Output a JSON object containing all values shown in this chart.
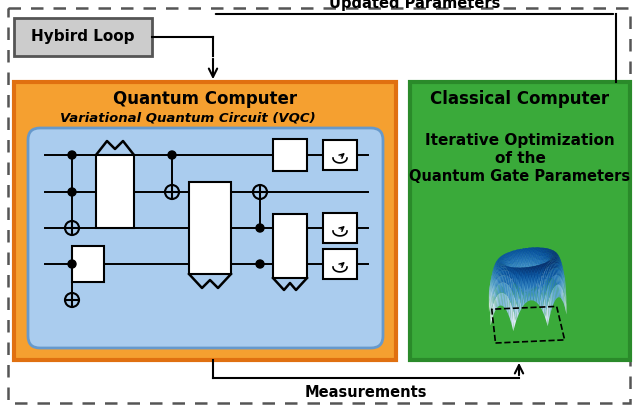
{
  "background_color": "#ffffff",
  "outer_box_edge": "#555555",
  "hybird_label": "Hybird Loop",
  "quantum_label": "Quantum Computer",
  "classical_label": "Classical Computer",
  "vqc_label": "Variational Quantum Circuit (VQC)",
  "classical_text1": "Iterative Optimization",
  "classical_text2": "of the",
  "classical_text3": "Quantum Gate Parameters",
  "updated_params_label": "Updated Parameters",
  "measurements_label": "Measurements",
  "quantum_fill": "#f5a030",
  "quantum_edge": "#e07010",
  "classical_fill": "#3aaa3a",
  "classical_edge": "#2a8a2a",
  "vqc_fill": "#aaccee",
  "vqc_edge": "#6699cc",
  "hybird_fill": "#cccccc",
  "hybird_edge": "#555555"
}
